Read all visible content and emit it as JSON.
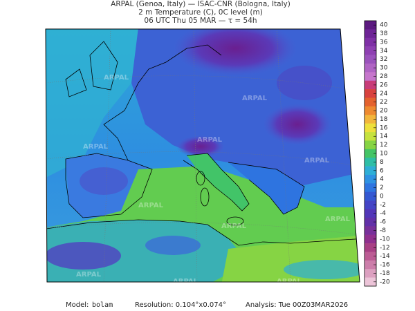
{
  "header": {
    "line1": "ARPAL (Genoa, Italy)  —  ISAC-CNR (Bologna, Italy)",
    "line2": "2 m Temperature (C), 0C level (m)",
    "line3": "06 UTC Thu 05 MAR  —  τ = 54h"
  },
  "colorbar": {
    "ticks": [
      40,
      38,
      36,
      34,
      32,
      30,
      28,
      26,
      24,
      22,
      20,
      18,
      16,
      14,
      12,
      10,
      8,
      6,
      4,
      2,
      0,
      -2,
      -4,
      -6,
      -8,
      -10,
      -12,
      -14,
      -16,
      -18,
      -20
    ],
    "colors": [
      "#5c1a80",
      "#6e2496",
      "#7f30a6",
      "#8e40b2",
      "#9a52bc",
      "#b064c4",
      "#c676cc",
      "#c83c78",
      "#d8423e",
      "#e4622e",
      "#ee8a30",
      "#f2b63c",
      "#eee03c",
      "#c6e23e",
      "#86d444",
      "#44c466",
      "#2ebea6",
      "#2eaed6",
      "#2e92e2",
      "#2e74e0",
      "#3458d2",
      "#4444c6",
      "#5236b8",
      "#6230a8",
      "#78309a",
      "#90308e",
      "#a84084",
      "#bc5c94",
      "#cc7eaa",
      "#dca0c0",
      "#ecc4d8"
    ]
  },
  "watermark": "ARPAL",
  "footer": {
    "model_label": "Model:",
    "model": "bolam",
    "resolution": "Resolution: 0.104°x0.074°",
    "analysis": "Analysis: Tue 00Z03MAR2026"
  }
}
